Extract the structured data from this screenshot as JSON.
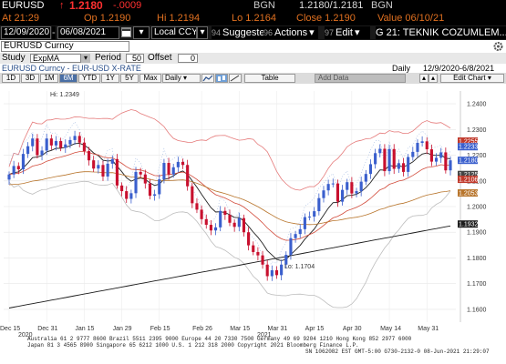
{
  "quote": {
    "ticker": "EURUSD",
    "arrow": "↑",
    "last": "1.2180",
    "change": "-.0009",
    "bgn_label": "BGN",
    "bid_ask": "1.2180/1.2181",
    "bgn_label2": "BGN"
  },
  "atline": {
    "at": "At 21:29",
    "open": "Op 1.2190",
    "high": "Hi 1.2194",
    "low": "Lo 1.2164",
    "close": "Close 1.2190",
    "value": "Value 06/10/21"
  },
  "toolbar": {
    "start_date": "12/09/2020",
    "end_date": "06/08/2021",
    "currency": "Local CCY",
    "suggested_num": "94",
    "suggested_label": "Suggested Charts",
    "actions_num": "96",
    "actions_label": "Actions",
    "edit_num": "97",
    "edit_label": "Edit",
    "title": "G 21: TEKNIK COZUMLEM..."
  },
  "security": {
    "name": "EURUSD Curncy"
  },
  "study": {
    "study_label": "Study",
    "study_value": "ExpMA",
    "period_label": "Period",
    "period_value": "50",
    "offset_label": "Offset",
    "offset_value": "0"
  },
  "subtitle": {
    "left": "EURUSD Curncy - EUR-USD X-RATE",
    "frequency": "Daily",
    "range": "12/9/2020-6/8/2021"
  },
  "period_buttons": [
    "1D",
    "3D",
    "1M",
    "6M",
    "YTD",
    "1Y",
    "5Y",
    "Max"
  ],
  "period_selected": "6M",
  "daily_select": "Daily",
  "table_label": "Table",
  "add_data_label": "Add Data",
  "edit_chart_label": "Edit Chart",
  "icons": [
    "line-chart-icon",
    "bar-chart-icon",
    "candle-chart-icon",
    "draw-tool-icon",
    "gear-icon",
    "zoom-icon"
  ],
  "colors": {
    "up_candle": "#3a5fcd",
    "down_candle": "#c8102e",
    "bollinger": "#e57a7a",
    "ema_short": "#222222",
    "ema_50": "#b8752c",
    "ema_200": "#1c1c1c",
    "ema_mid": "#d24b3b",
    "envelope_lower": "#bdbdbd"
  },
  "chart_data": {
    "type": "candlestick",
    "annotation_high": "Hi: 1.2349",
    "annotation_low": "Lo: 1.1704",
    "yticks": [
      "1.2400",
      "1.2300",
      "1.2200",
      "1.2100",
      "1.2000",
      "1.1900",
      "1.1800",
      "1.1700",
      "1.1600"
    ],
    "ylim": [
      1.155,
      1.245
    ],
    "xticks": [
      "Dec 15",
      "Dec 31",
      "Jan 15",
      "Jan 29",
      "Feb 15",
      "Feb 26",
      "Mar 15",
      "Mar 31",
      "Apr 15",
      "Apr 30",
      "May 14",
      "May 31"
    ],
    "year_labels": [
      "2020",
      "2021"
    ],
    "right_labels": [
      {
        "value": "1.2255",
        "color": "#ffffff",
        "bg": "#c0392b"
      },
      {
        "value": "1.2233",
        "color": "#ffffff",
        "bg": "#3a5fcd"
      },
      {
        "value": "1.2180",
        "color": "#ffffff",
        "bg": "#3a5fcd"
      },
      {
        "value": "1.2125",
        "color": "#ffffff",
        "bg": "#444444"
      },
      {
        "value": "1.2106",
        "color": "#ffffff",
        "bg": "#c0392b"
      },
      {
        "value": "1.2053",
        "color": "#ffffff",
        "bg": "#b8752c"
      },
      {
        "value": "1.1932",
        "color": "#ffffff",
        "bg": "#1c1c1c"
      }
    ],
    "close_series": [
      1.2125,
      1.2158,
      1.2145,
      1.2205,
      1.2235,
      1.2265,
      1.22,
      1.2218,
      1.2265,
      1.2238,
      1.2255,
      1.2229,
      1.2242,
      1.2259,
      1.2275,
      1.2249,
      1.2216,
      1.218,
      1.2148,
      1.2162,
      1.2117,
      1.2167,
      1.2185,
      1.2082,
      1.206,
      1.203,
      1.2052,
      1.2135,
      1.2125,
      1.209,
      1.2042,
      1.2048,
      1.2106,
      1.217,
      1.2125,
      1.2153,
      1.2174,
      1.2162,
      1.2079,
      1.2013,
      1.1988,
      1.1951,
      1.1929,
      1.1907,
      1.1919,
      1.1983,
      1.1968,
      1.1937,
      1.1921,
      1.1955,
      1.19,
      1.1849,
      1.1823,
      1.181,
      1.1774,
      1.1729,
      1.1752,
      1.1733,
      1.1774,
      1.1812,
      1.1877,
      1.1893,
      1.1912,
      1.1959,
      1.1961,
      1.1982,
      1.2033,
      1.2063,
      1.2088,
      1.209,
      1.2019,
      1.2065,
      1.2095,
      1.2051,
      1.206,
      1.2097,
      1.2127,
      1.2165,
      1.2208,
      1.2225,
      1.2138,
      1.2224,
      1.2147,
      1.2169,
      1.2135,
      1.2193,
      1.2213,
      1.2248,
      1.2254,
      1.2223,
      1.2175,
      1.219,
      1.2211,
      1.2141,
      1.218
    ]
  },
  "footer": {
    "line1": "Australia 61 2 9777 8600 Brazil 5511 2395 9000 Europe 44 20 7330 7500 Germany 49 69 9204 1210 Hong Kong 852 2977 6000",
    "line2": "Japan 81 3 4565 8900        Singapore 65 6212 1000        U.S. 1 212 318 2000          Copyright 2021 Bloomberg Finance L.P.",
    "line3": "SN 1062082 EST GMT-5:00 G730-2132-0 08-Jun-2021 21:29:07"
  }
}
